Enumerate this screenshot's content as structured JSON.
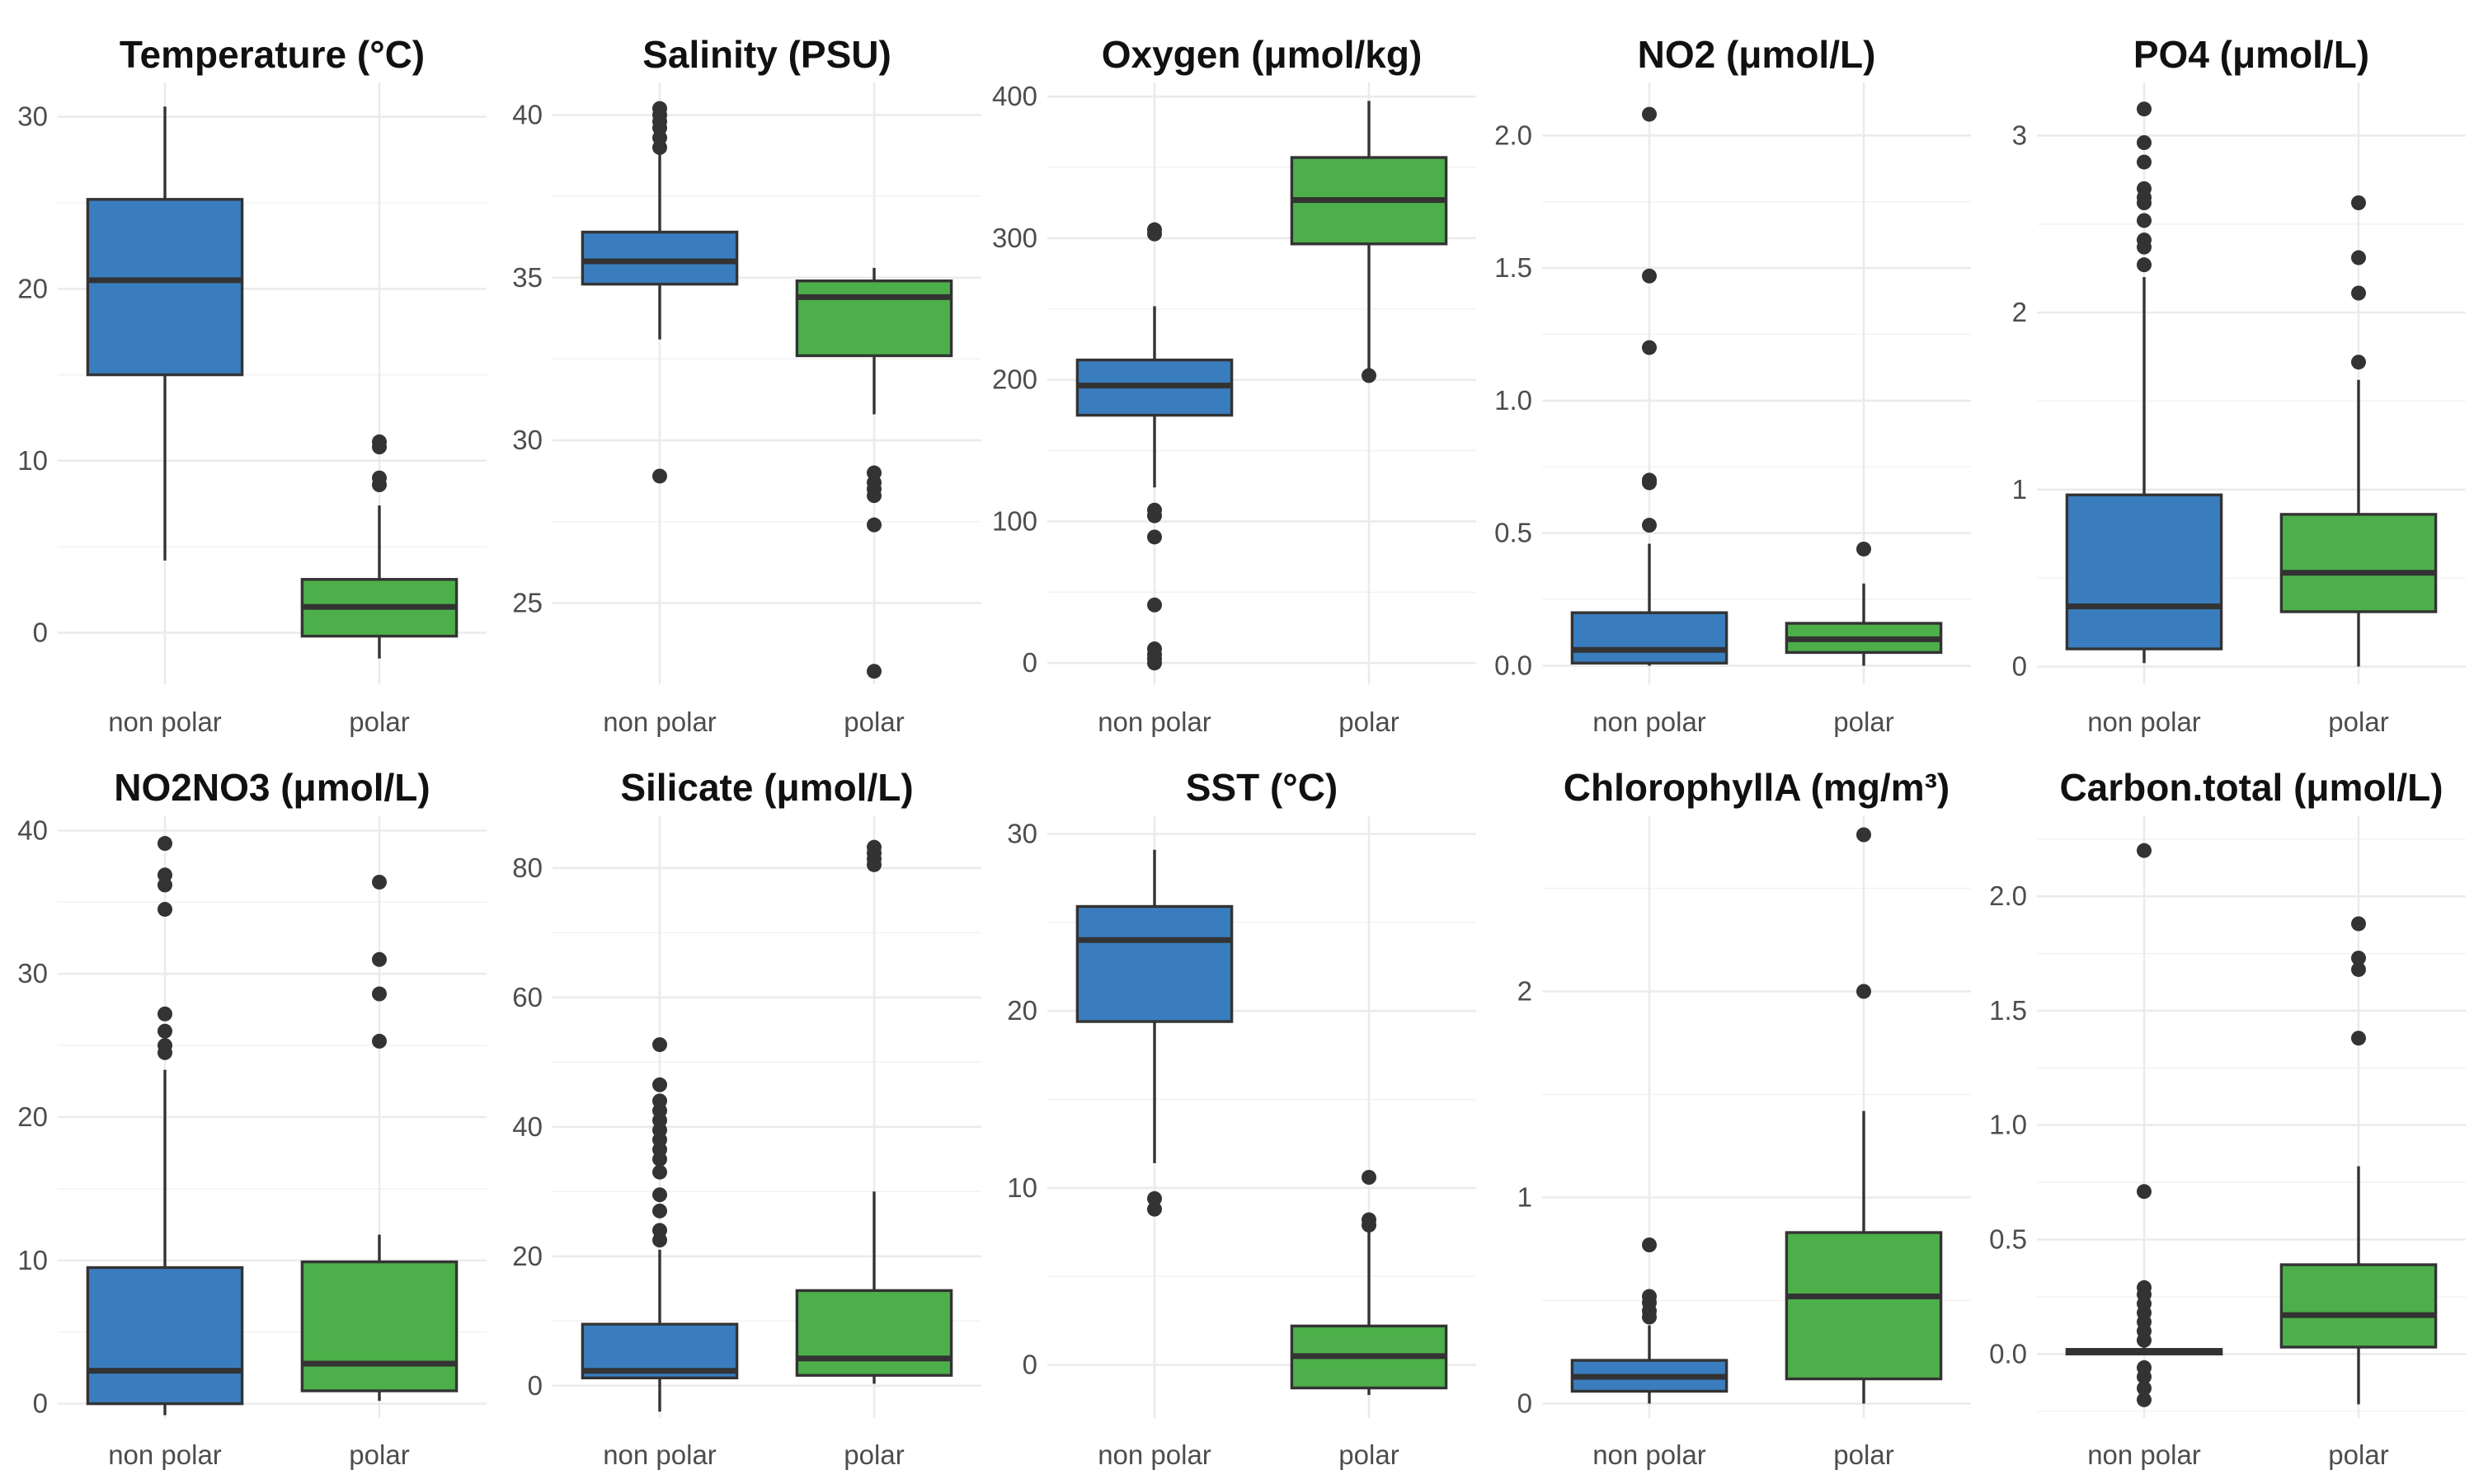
{
  "colors": {
    "non_polar": "#3a7dbf",
    "polar": "#4daf4a",
    "outline": "#333333",
    "grid": "#ebebeb"
  },
  "chart_data": [
    {
      "type": "box",
      "title": "Temperature (°C)",
      "categories": [
        "non polar",
        "polar"
      ],
      "yticks": [
        0,
        10,
        20,
        30
      ],
      "ylim": [
        -3,
        32
      ],
      "boxes": [
        {
          "category": "non polar",
          "q1": 15,
          "median": 20.5,
          "q3": 25.2,
          "whisker_low": 4.2,
          "whisker_high": 30.6,
          "outliers": []
        },
        {
          "category": "polar",
          "q1": -0.2,
          "median": 1.5,
          "q3": 3.1,
          "whisker_low": -1.5,
          "whisker_high": 7.4,
          "outliers": [
            8.6,
            9.0,
            10.8,
            11.1
          ]
        }
      ]
    },
    {
      "type": "box",
      "title": "Salinity (PSU)",
      "categories": [
        "non polar",
        "polar"
      ],
      "yticks": [
        25,
        30,
        35,
        40
      ],
      "ylim": [
        22.5,
        41
      ],
      "boxes": [
        {
          "category": "non polar",
          "q1": 34.8,
          "median": 35.5,
          "q3": 36.4,
          "whisker_low": 33.1,
          "whisker_high": 38.8,
          "outliers": [
            28.9,
            39.0,
            39.3,
            39.6,
            39.8,
            40.0,
            40.2
          ]
        },
        {
          "category": "polar",
          "q1": 32.6,
          "median": 34.4,
          "q3": 34.9,
          "whisker_low": 30.8,
          "whisker_high": 35.3,
          "outliers": [
            22.9,
            27.4,
            28.3,
            28.5,
            28.7,
            29.0
          ]
        }
      ]
    },
    {
      "type": "box",
      "title": "Oxygen (μmol/kg)",
      "categories": [
        "non polar",
        "polar"
      ],
      "yticks": [
        0,
        100,
        200,
        300,
        400
      ],
      "ylim": [
        -15,
        410
      ],
      "boxes": [
        {
          "category": "non polar",
          "q1": 175,
          "median": 196,
          "q3": 214,
          "whisker_low": 124,
          "whisker_high": 252,
          "outliers": [
            0,
            3,
            6,
            10,
            41,
            89,
            104,
            108,
            303,
            306
          ]
        },
        {
          "category": "polar",
          "q1": 296,
          "median": 327,
          "q3": 357,
          "whisker_low": 203,
          "whisker_high": 397,
          "outliers": [
            203
          ]
        }
      ]
    },
    {
      "type": "box",
      "title": "NO2 (μmol/L)",
      "categories": [
        "non polar",
        "polar"
      ],
      "yticks": [
        0.0,
        0.5,
        1.0,
        1.5,
        2.0
      ],
      "ylim": [
        -0.07,
        2.2
      ],
      "ytick_labels": [
        "0.0",
        "0.5",
        "1.0",
        "1.5",
        "2.0"
      ],
      "boxes": [
        {
          "category": "non polar",
          "q1": 0.01,
          "median": 0.06,
          "q3": 0.2,
          "whisker_low": 0.0,
          "whisker_high": 0.46,
          "outliers": [
            0.53,
            0.69,
            0.7,
            1.2,
            1.47,
            2.08
          ]
        },
        {
          "category": "polar",
          "q1": 0.05,
          "median": 0.1,
          "q3": 0.16,
          "whisker_low": 0.0,
          "whisker_high": 0.31,
          "outliers": [
            0.44
          ]
        }
      ]
    },
    {
      "type": "box",
      "title": "PO4 (μmol/L)",
      "categories": [
        "non polar",
        "polar"
      ],
      "yticks": [
        0,
        1,
        2,
        3
      ],
      "ylim": [
        -0.1,
        3.3
      ],
      "boxes": [
        {
          "category": "non polar",
          "q1": 0.1,
          "median": 0.34,
          "q3": 0.97,
          "whisker_low": 0.02,
          "whisker_high": 2.2,
          "outliers": [
            2.27,
            2.37,
            2.41,
            2.52,
            2.62,
            2.65,
            2.7,
            2.85,
            2.96,
            3.15
          ]
        },
        {
          "category": "polar",
          "q1": 0.31,
          "median": 0.53,
          "q3": 0.86,
          "whisker_low": 0.0,
          "whisker_high": 1.62,
          "outliers": [
            1.72,
            2.11,
            2.31,
            2.62
          ]
        }
      ]
    },
    {
      "type": "box",
      "title": "NO2NO3 (μmol/L)",
      "categories": [
        "non polar",
        "polar"
      ],
      "yticks": [
        0,
        10,
        20,
        30,
        40
      ],
      "ylim": [
        -1,
        41
      ],
      "boxes": [
        {
          "category": "non polar",
          "q1": 0,
          "median": 2.3,
          "q3": 9.5,
          "whisker_low": -0.8,
          "whisker_high": 23.3,
          "outliers": [
            24.5,
            25.0,
            26.0,
            27.2,
            34.5,
            36.2,
            36.9,
            39.1
          ]
        },
        {
          "category": "polar",
          "q1": 0.9,
          "median": 2.8,
          "q3": 9.9,
          "whisker_low": 0.2,
          "whisker_high": 11.8,
          "outliers": [
            25.3,
            28.6,
            31.0,
            36.4
          ]
        }
      ]
    },
    {
      "type": "box",
      "title": "Silicate (μmol/L)",
      "categories": [
        "non polar",
        "polar"
      ],
      "yticks": [
        0,
        20,
        40,
        60,
        80
      ],
      "ylim": [
        -5,
        88
      ],
      "boxes": [
        {
          "category": "non polar",
          "q1": 1.2,
          "median": 2.3,
          "q3": 9.5,
          "whisker_low": -4,
          "whisker_high": 21,
          "outliers": [
            22.5,
            24,
            27,
            29.5,
            33,
            35,
            36.5,
            38,
            39.5,
            41,
            42.5,
            44,
            46.5,
            52.7
          ]
        },
        {
          "category": "polar",
          "q1": 1.6,
          "median": 4.2,
          "q3": 14.7,
          "whisker_low": 0.3,
          "whisker_high": 30,
          "outliers": [
            80.5,
            81.4,
            82.3,
            83.2
          ]
        }
      ]
    },
    {
      "type": "box",
      "title": "SST (°C)",
      "categories": [
        "non polar",
        "polar"
      ],
      "yticks": [
        0,
        10,
        20,
        30
      ],
      "ylim": [
        -3,
        31
      ],
      "boxes": [
        {
          "category": "non polar",
          "q1": 19.4,
          "median": 24,
          "q3": 25.9,
          "whisker_low": 11.4,
          "whisker_high": 29.1,
          "outliers": [
            8.8,
            9.4
          ]
        },
        {
          "category": "polar",
          "q1": -1.3,
          "median": 0.5,
          "q3": 2.2,
          "whisker_low": -1.7,
          "whisker_high": 7.5,
          "outliers": [
            7.9,
            8.2,
            10.6
          ]
        }
      ]
    },
    {
      "type": "box",
      "title": "ChlorophyllA (mg/m³)",
      "categories": [
        "non polar",
        "polar"
      ],
      "yticks": [
        0,
        1,
        2
      ],
      "ylim": [
        -0.07,
        2.85
      ],
      "boxes": [
        {
          "category": "non polar",
          "q1": 0.06,
          "median": 0.13,
          "q3": 0.21,
          "whisker_low": 0.0,
          "whisker_high": 0.38,
          "outliers": [
            0.42,
            0.45,
            0.49,
            0.52,
            0.77
          ]
        },
        {
          "category": "polar",
          "q1": 0.12,
          "median": 0.52,
          "q3": 0.83,
          "whisker_low": 0.0,
          "whisker_high": 1.42,
          "outliers": [
            2.0,
            2.76
          ]
        }
      ]
    },
    {
      "type": "box",
      "title": "Carbon.total (μmol/L)",
      "categories": [
        "non polar",
        "polar"
      ],
      "yticks": [
        0.0,
        0.5,
        1.0,
        1.5,
        2.0
      ],
      "ylim": [
        -0.28,
        2.35
      ],
      "ytick_labels": [
        "0.0",
        "0.5",
        "1.0",
        "1.5",
        "2.0"
      ],
      "boxes": [
        {
          "category": "non polar",
          "q1": 0.0,
          "median": 0.01,
          "q3": 0.02,
          "whisker_low": 0.0,
          "whisker_high": 0.03,
          "outliers": [
            -0.2,
            -0.15,
            -0.1,
            -0.06,
            0.06,
            0.1,
            0.14,
            0.18,
            0.22,
            0.26,
            0.29,
            0.71,
            2.2
          ]
        },
        {
          "category": "polar",
          "q1": 0.03,
          "median": 0.17,
          "q3": 0.39,
          "whisker_low": -0.22,
          "whisker_high": 0.82,
          "outliers": [
            1.38,
            1.68,
            1.73,
            1.88
          ]
        }
      ]
    }
  ]
}
